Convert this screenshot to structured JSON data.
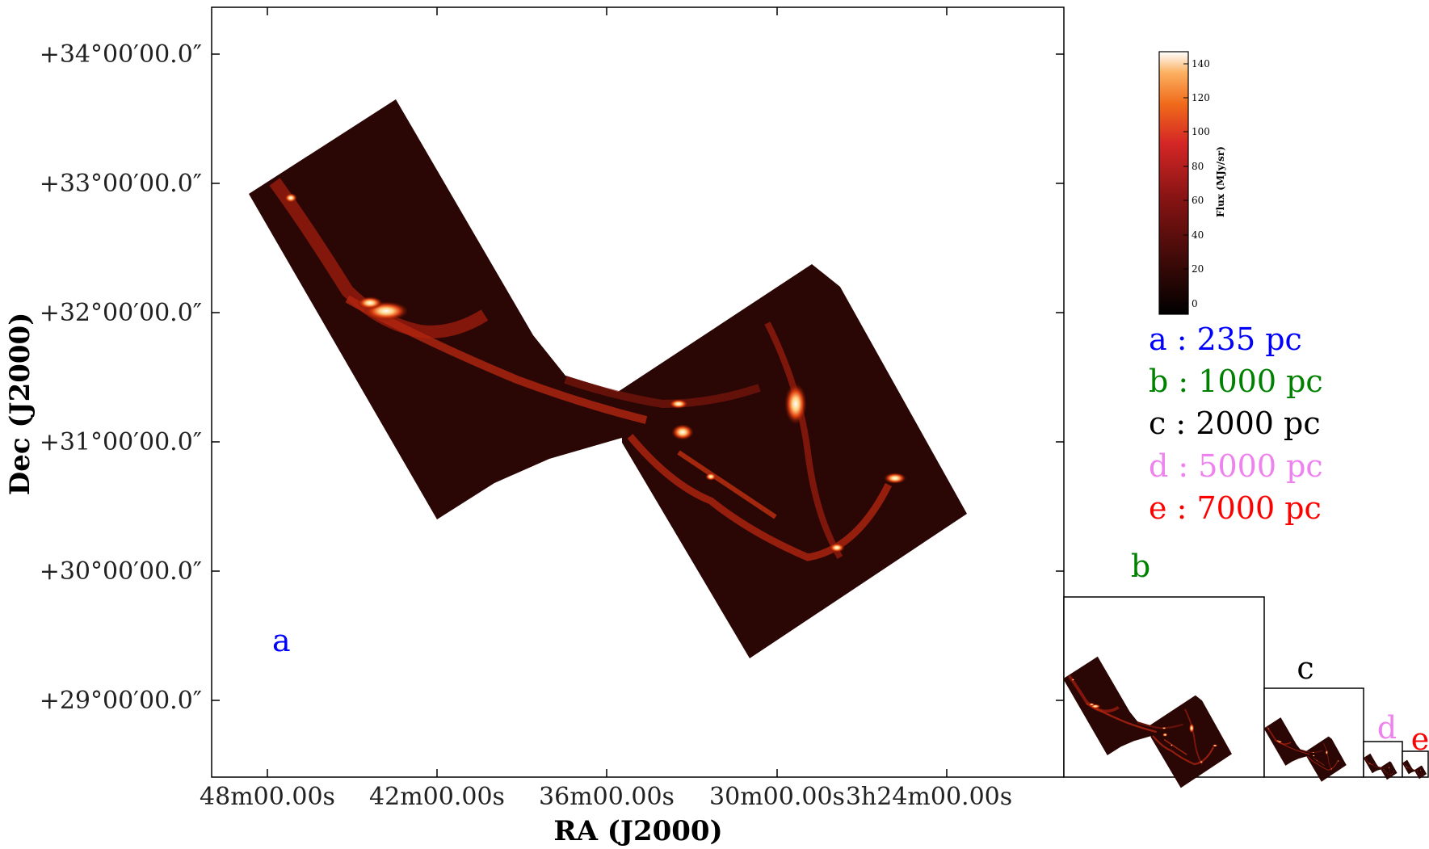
{
  "figure": {
    "main_panel_label": "a",
    "colors": {
      "a": "#0000ff",
      "b": "#008000",
      "c": "#000000",
      "d": "#ee82ee",
      "e": "#ff0000"
    },
    "axes": {
      "x_label": "RA (J2000)",
      "y_label": "Dec (J2000)",
      "x_ticks": [
        "48m00.00s",
        "42m00.00s",
        "36m00.00s",
        "30m00.00s",
        "3h24m00.00s"
      ],
      "y_ticks": [
        "+34°00′00.0″",
        "+33°00′00.0″",
        "+32°00′00.0″",
        "+31°00′00.0″",
        "+30°00′00.0″",
        "+29°00′00.0″"
      ]
    },
    "colorbar": {
      "label": "Flux (MJy/sr)",
      "ticks": [
        "140",
        "120",
        "100",
        "80",
        "60",
        "40",
        "20",
        "0"
      ],
      "colormap": "gist_heat"
    },
    "legend": [
      {
        "key": "a",
        "text": "a : 235 pc"
      },
      {
        "key": "b",
        "text": "b : 1000 pc"
      },
      {
        "key": "c",
        "text": "c : 2000 pc"
      },
      {
        "key": "d",
        "text": "d : 5000 pc"
      },
      {
        "key": "e",
        "text": "e : 7000 pc"
      }
    ],
    "insets": [
      {
        "label": "b"
      },
      {
        "label": "c"
      },
      {
        "label": "d"
      },
      {
        "label": "e"
      }
    ]
  }
}
